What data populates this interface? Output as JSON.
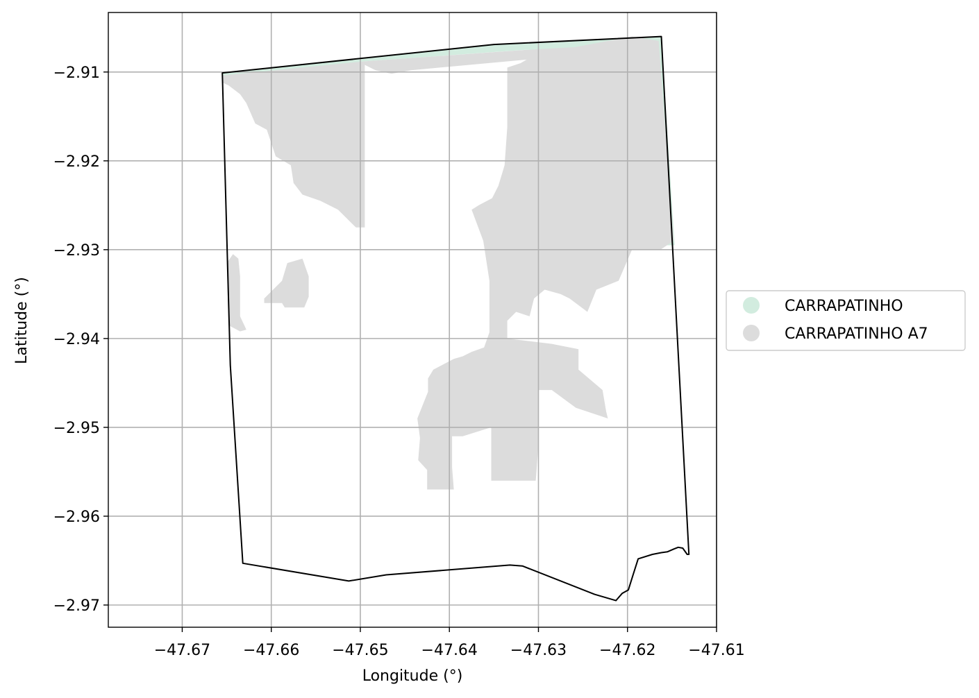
{
  "chart_data": {
    "type": "map",
    "title": "",
    "xlabel": "Longitude (°)",
    "ylabel": "Latitude (°)",
    "xlim": [
      -47.6783,
      -47.61
    ],
    "ylim": [
      -2.9725,
      -2.9033
    ],
    "grid": true,
    "xticks": [
      -47.67,
      -47.66,
      -47.65,
      -47.64,
      -47.63,
      -47.62,
      -47.61
    ],
    "yticks": [
      -2.91,
      -2.92,
      -2.93,
      -2.94,
      -2.95,
      -2.96,
      -2.97
    ],
    "xtick_labels": [
      "−47.67",
      "−47.66",
      "−47.65",
      "−47.64",
      "−47.63",
      "−47.62",
      "−47.61"
    ],
    "ytick_labels": [
      "−2.91",
      "−2.92",
      "−2.93",
      "−2.94",
      "−2.95",
      "−2.96",
      "−2.97"
    ],
    "legend_position": "right",
    "legend": [
      {
        "label": "CARRAPATINHO",
        "color": "#d2ecdf"
      },
      {
        "label": "CARRAPATINHO A7",
        "color": "#dcdcdc"
      }
    ],
    "boundary": [
      [
        -47.6655,
        -2.9101
      ],
      [
        -47.635,
        -2.9069
      ],
      [
        -47.6162,
        -2.906
      ],
      [
        -47.6131,
        -2.9643
      ],
      [
        -47.6133,
        -2.9643
      ],
      [
        -47.6138,
        -2.9636
      ],
      [
        -47.6143,
        -2.9635
      ],
      [
        -47.6148,
        -2.9637
      ],
      [
        -47.6155,
        -2.964
      ],
      [
        -47.6162,
        -2.9641
      ],
      [
        -47.6172,
        -2.9643
      ],
      [
        -47.6188,
        -2.9648
      ],
      [
        -47.6194,
        -2.9667
      ],
      [
        -47.6199,
        -2.9683
      ],
      [
        -47.6206,
        -2.9687
      ],
      [
        -47.6213,
        -2.9695
      ],
      [
        -47.6237,
        -2.9688
      ],
      [
        -47.6318,
        -2.9656
      ],
      [
        -47.6332,
        -2.9655
      ],
      [
        -47.6471,
        -2.9666
      ],
      [
        -47.6513,
        -2.9673
      ],
      [
        -47.6632,
        -2.9653
      ],
      [
        -47.6646,
        -2.943
      ],
      [
        -47.6655,
        -2.9101
      ]
    ],
    "regions": [
      {
        "layer": "CARRAPATINHO",
        "coords": [
          [
            -47.6655,
            -2.9101
          ],
          [
            -47.635,
            -2.9069
          ],
          [
            -47.6162,
            -2.906
          ],
          [
            -47.6147,
            -2.9295
          ],
          [
            -47.6158,
            -2.9295
          ],
          [
            -47.6163,
            -2.9268
          ],
          [
            -47.6167,
            -2.912
          ],
          [
            -47.6177,
            -2.9078
          ],
          [
            -47.6258,
            -2.9073
          ],
          [
            -47.6315,
            -2.9075
          ],
          [
            -47.6495,
            -2.9088
          ],
          [
            -47.6655,
            -2.9108
          ]
        ]
      },
      {
        "layer": "CARRAPATINHO A7",
        "coords": [
          [
            -47.6655,
            -2.9104
          ],
          [
            -47.6495,
            -2.9088
          ],
          [
            -47.6313,
            -2.9075
          ],
          [
            -47.6258,
            -2.9072
          ],
          [
            -47.6258,
            -2.9082
          ],
          [
            -47.6313,
            -2.9086
          ],
          [
            -47.6443,
            -2.9098
          ],
          [
            -47.6465,
            -2.9102
          ],
          [
            -47.6483,
            -2.9098
          ],
          [
            -47.6495,
            -2.9092
          ],
          [
            -47.6495,
            -2.9175
          ],
          [
            -47.6495,
            -2.9275
          ],
          [
            -47.6505,
            -2.9275
          ],
          [
            -47.6515,
            -2.9265
          ],
          [
            -47.6525,
            -2.9255
          ],
          [
            -47.6545,
            -2.9245
          ],
          [
            -47.6565,
            -2.9238
          ],
          [
            -47.6575,
            -2.9225
          ],
          [
            -47.6578,
            -2.9205
          ],
          [
            -47.6595,
            -2.9195
          ],
          [
            -47.6605,
            -2.9165
          ],
          [
            -47.6618,
            -2.9158
          ],
          [
            -47.6628,
            -2.9135
          ],
          [
            -47.6635,
            -2.9125
          ],
          [
            -47.6648,
            -2.9115
          ],
          [
            -47.6655,
            -2.9112
          ]
        ]
      },
      {
        "layer": "CARRAPATINHO A7",
        "coords": [
          [
            -47.6643,
            -2.9305
          ],
          [
            -47.6637,
            -2.931
          ],
          [
            -47.6635,
            -2.933
          ],
          [
            -47.6635,
            -2.9375
          ],
          [
            -47.6628,
            -2.939
          ],
          [
            -47.6635,
            -2.9392
          ],
          [
            -47.6648,
            -2.9385
          ],
          [
            -47.665,
            -2.9315
          ]
        ]
      },
      {
        "layer": "CARRAPATINHO A7",
        "coords": [
          [
            -47.6565,
            -2.931
          ],
          [
            -47.6582,
            -2.9315
          ],
          [
            -47.6588,
            -2.9335
          ],
          [
            -47.6598,
            -2.9345
          ],
          [
            -47.6608,
            -2.9355
          ],
          [
            -47.6608,
            -2.936
          ],
          [
            -47.6588,
            -2.936
          ],
          [
            -47.6585,
            -2.9365
          ],
          [
            -47.6563,
            -2.9365
          ],
          [
            -47.6558,
            -2.9353
          ],
          [
            -47.6558,
            -2.933
          ]
        ]
      },
      {
        "layer": "CARRAPATINHO A7",
        "coords": [
          [
            -47.6275,
            -2.9075
          ],
          [
            -47.6195,
            -2.906
          ],
          [
            -47.6165,
            -2.9065
          ],
          [
            -47.6148,
            -2.929
          ],
          [
            -47.6163,
            -2.93
          ],
          [
            -47.6195,
            -2.93
          ],
          [
            -47.621,
            -2.9335
          ],
          [
            -47.6235,
            -2.9345
          ],
          [
            -47.6245,
            -2.937
          ],
          [
            -47.6265,
            -2.9355
          ],
          [
            -47.6275,
            -2.935
          ],
          [
            -47.6293,
            -2.9345
          ],
          [
            -47.6305,
            -2.9355
          ],
          [
            -47.631,
            -2.9375
          ],
          [
            -47.6325,
            -2.937
          ],
          [
            -47.6335,
            -2.938
          ],
          [
            -47.6335,
            -2.94
          ],
          [
            -47.6285,
            -2.9406
          ],
          [
            -47.6255,
            -2.9412
          ],
          [
            -47.6255,
            -2.9435
          ],
          [
            -47.6228,
            -2.9458
          ],
          [
            -47.6224,
            -2.9482
          ],
          [
            -47.6222,
            -2.949
          ],
          [
            -47.6258,
            -2.9478
          ],
          [
            -47.6285,
            -2.9458
          ],
          [
            -47.63,
            -2.9458
          ],
          [
            -47.63,
            -2.952
          ],
          [
            -47.6303,
            -2.956
          ],
          [
            -47.6353,
            -2.956
          ],
          [
            -47.6353,
            -2.95
          ],
          [
            -47.6385,
            -2.951
          ],
          [
            -47.6397,
            -2.951
          ],
          [
            -47.6397,
            -2.9545
          ],
          [
            -47.6395,
            -2.957
          ],
          [
            -47.6425,
            -2.957
          ],
          [
            -47.6425,
            -2.9548
          ],
          [
            -47.6435,
            -2.9537
          ],
          [
            -47.6433,
            -2.9512
          ],
          [
            -47.6436,
            -2.949
          ],
          [
            -47.6424,
            -2.946
          ],
          [
            -47.6424,
            -2.9445
          ],
          [
            -47.6418,
            -2.9435
          ],
          [
            -47.6395,
            -2.9423
          ],
          [
            -47.6385,
            -2.942
          ],
          [
            -47.6375,
            -2.9415
          ],
          [
            -47.6361,
            -2.941
          ],
          [
            -47.6355,
            -2.9393
          ],
          [
            -47.6355,
            -2.9335
          ],
          [
            -47.6362,
            -2.929
          ],
          [
            -47.6375,
            -2.9255
          ],
          [
            -47.6367,
            -2.925
          ],
          [
            -47.6352,
            -2.9242
          ],
          [
            -47.6345,
            -2.9228
          ],
          [
            -47.6338,
            -2.9205
          ],
          [
            -47.6335,
            -2.9162
          ],
          [
            -47.6335,
            -2.9095
          ],
          [
            -47.632,
            -2.909
          ],
          [
            -47.6303,
            -2.908
          ]
        ]
      }
    ]
  }
}
